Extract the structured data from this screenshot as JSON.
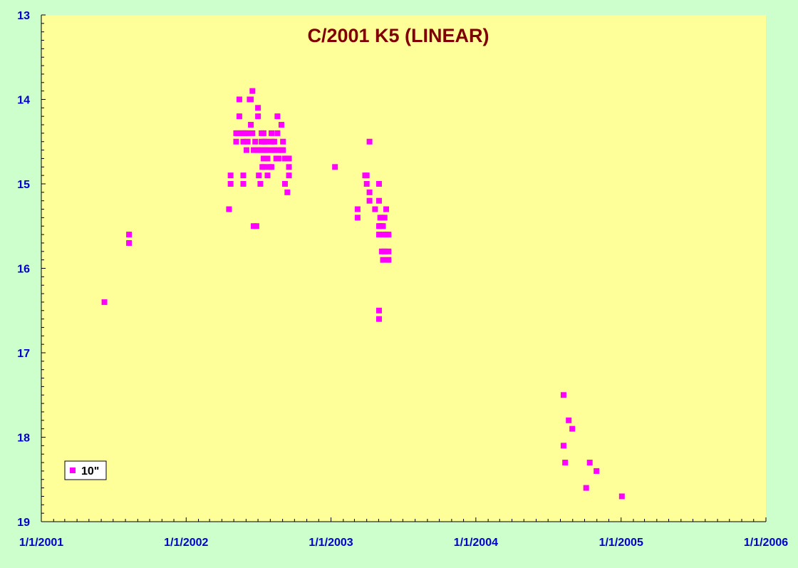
{
  "chart_data": {
    "type": "scatter",
    "title": "C/2001 K5 (LINEAR)",
    "xlabel": "",
    "ylabel": "",
    "x_axis": {
      "type": "date",
      "range": [
        "2001-01-01",
        "2006-01-01"
      ],
      "tick_labels": [
        "1/1/2001",
        "1/1/2002",
        "1/1/2003",
        "1/1/2004",
        "1/1/2005",
        "1/1/2006"
      ]
    },
    "y_axis": {
      "range": [
        13,
        19
      ],
      "reversed": true,
      "tick_labels": [
        "13",
        "14",
        "15",
        "16",
        "17",
        "18",
        "19"
      ]
    },
    "grid": false,
    "legend_position": "bottom-left",
    "colors": {
      "page_background": "#ccffcc",
      "plot_background": "#ffff99",
      "title": "#800000",
      "tick_labels": "#0000cc",
      "marker": "#ff00ff"
    },
    "series": [
      {
        "name": "10\"",
        "points": [
          [
            "2001-06-09",
            16.4
          ],
          [
            "2001-08-10",
            15.6
          ],
          [
            "2001-08-10",
            15.7
          ],
          [
            "2002-04-19",
            15.3
          ],
          [
            "2002-04-23",
            14.9
          ],
          [
            "2002-04-23",
            15.0
          ],
          [
            "2002-05-07",
            14.4
          ],
          [
            "2002-05-07",
            14.5
          ],
          [
            "2002-05-11",
            14.4
          ],
          [
            "2002-05-15",
            14.0
          ],
          [
            "2002-05-15",
            14.2
          ],
          [
            "2002-05-21",
            14.4
          ],
          [
            "2002-05-25",
            14.4
          ],
          [
            "2002-05-25",
            14.5
          ],
          [
            "2002-05-25",
            14.9
          ],
          [
            "2002-05-25",
            15.0
          ],
          [
            "2002-05-29",
            14.4
          ],
          [
            "2002-06-02",
            14.6
          ],
          [
            "2002-06-05",
            14.4
          ],
          [
            "2002-06-05",
            14.5
          ],
          [
            "2002-06-10",
            14.0
          ],
          [
            "2002-06-13",
            14.3
          ],
          [
            "2002-06-13",
            14.0
          ],
          [
            "2002-06-17",
            13.9
          ],
          [
            "2002-06-17",
            14.4
          ],
          [
            "2002-06-20",
            14.6
          ],
          [
            "2002-06-20",
            15.5
          ],
          [
            "2002-06-24",
            14.5
          ],
          [
            "2002-06-27",
            15.5
          ],
          [
            "2002-07-01",
            14.1
          ],
          [
            "2002-07-01",
            14.2
          ],
          [
            "2002-07-01",
            14.6
          ],
          [
            "2002-07-03",
            14.9
          ],
          [
            "2002-07-07",
            15.0
          ],
          [
            "2002-07-07",
            14.6
          ],
          [
            "2002-07-10",
            14.4
          ],
          [
            "2002-07-10",
            14.5
          ],
          [
            "2002-07-12",
            14.8
          ],
          [
            "2002-07-15",
            14.4
          ],
          [
            "2002-07-15",
            14.6
          ],
          [
            "2002-07-15",
            14.7
          ],
          [
            "2002-07-17",
            14.5
          ],
          [
            "2002-07-17",
            14.8
          ],
          [
            "2002-07-21",
            14.5
          ],
          [
            "2002-07-21",
            14.6
          ],
          [
            "2002-07-25",
            14.6
          ],
          [
            "2002-07-25",
            14.7
          ],
          [
            "2002-07-25",
            14.9
          ],
          [
            "2002-07-30",
            14.8
          ],
          [
            "2002-08-04",
            14.8
          ],
          [
            "2002-08-04",
            14.4
          ],
          [
            "2002-08-04",
            14.5
          ],
          [
            "2002-08-07",
            14.6
          ],
          [
            "2002-08-11",
            14.6
          ],
          [
            "2002-08-11",
            14.5
          ],
          [
            "2002-08-16",
            14.7
          ],
          [
            "2002-08-19",
            14.2
          ],
          [
            "2002-08-19",
            14.4
          ],
          [
            "2002-08-22",
            14.6
          ],
          [
            "2002-08-22",
            14.7
          ],
          [
            "2002-08-29",
            14.3
          ],
          [
            "2002-08-29",
            14.6
          ],
          [
            "2002-09-02",
            14.5
          ],
          [
            "2002-09-02",
            14.6
          ],
          [
            "2002-09-07",
            14.7
          ],
          [
            "2002-09-07",
            15.0
          ],
          [
            "2002-09-13",
            14.7
          ],
          [
            "2002-09-13",
            15.1
          ],
          [
            "2002-09-17",
            14.7
          ],
          [
            "2002-09-17",
            14.8
          ],
          [
            "2002-09-17",
            14.9
          ],
          [
            "2003-01-11",
            14.8
          ],
          [
            "2003-03-09",
            15.3
          ],
          [
            "2003-03-09",
            15.4
          ],
          [
            "2003-03-28",
            14.9
          ],
          [
            "2003-04-01",
            14.9
          ],
          [
            "2003-04-01",
            15.0
          ],
          [
            "2003-04-08",
            15.1
          ],
          [
            "2003-04-08",
            15.2
          ],
          [
            "2003-04-08",
            14.5
          ],
          [
            "2003-04-22",
            15.3
          ],
          [
            "2003-05-02",
            15.0
          ],
          [
            "2003-05-02",
            15.2
          ],
          [
            "2003-05-02",
            15.5
          ],
          [
            "2003-05-02",
            15.6
          ],
          [
            "2003-05-02",
            16.5
          ],
          [
            "2003-05-02",
            16.6
          ],
          [
            "2003-05-05",
            15.4
          ],
          [
            "2003-05-05",
            15.5
          ],
          [
            "2003-05-09",
            15.4
          ],
          [
            "2003-05-09",
            15.5
          ],
          [
            "2003-05-09",
            15.8
          ],
          [
            "2003-05-12",
            15.5
          ],
          [
            "2003-05-12",
            15.6
          ],
          [
            "2003-05-12",
            15.9
          ],
          [
            "2003-05-16",
            15.8
          ],
          [
            "2003-05-16",
            15.4
          ],
          [
            "2003-05-20",
            15.3
          ],
          [
            "2003-05-20",
            15.6
          ],
          [
            "2003-05-26",
            15.6
          ],
          [
            "2003-05-26",
            15.8
          ],
          [
            "2003-05-26",
            15.9
          ],
          [
            "2004-08-09",
            17.5
          ],
          [
            "2004-08-09",
            18.1
          ],
          [
            "2004-08-13",
            18.3
          ],
          [
            "2004-08-22",
            17.8
          ],
          [
            "2004-08-31",
            17.9
          ],
          [
            "2004-10-05",
            18.6
          ],
          [
            "2004-10-14",
            18.3
          ],
          [
            "2004-10-31",
            18.4
          ],
          [
            "2005-01-03",
            18.7
          ]
        ]
      }
    ]
  }
}
